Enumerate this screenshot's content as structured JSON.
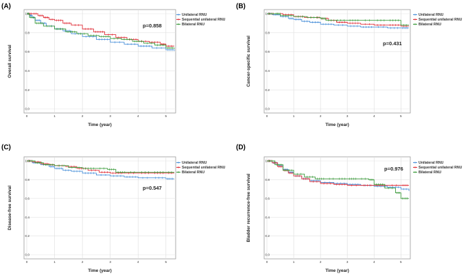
{
  "figure": {
    "legend_entries": [
      {
        "name": "Unilateral RNU",
        "color": "#4a90d9"
      },
      {
        "name": "Sequential unilateral RNU",
        "color": "#e0303a"
      },
      {
        "name": "Bilateral RNU",
        "color": "#3a9a3a"
      }
    ]
  },
  "chart_data": [
    {
      "panel": "(A)",
      "type": "line",
      "ylabel": "Overall survival",
      "xlabel": "Time (year)",
      "pvalue": "p=0.858",
      "legend_position": "top-right",
      "pvalue_position": "top",
      "xlim": [
        0,
        5.3
      ],
      "ylim": [
        0,
        1.0
      ],
      "xticks": [
        "0",
        "1",
        "2",
        "3",
        "4",
        "5"
      ],
      "yticks": [
        "0.0",
        "0.2",
        "0.4",
        "0.6",
        "0.8",
        "1.0"
      ],
      "series": [
        {
          "name": "Unilateral RNU",
          "color": "#4a90d9",
          "x": [
            0,
            0.1,
            0.2,
            0.3,
            0.5,
            0.7,
            1.0,
            1.3,
            1.6,
            2.0,
            2.5,
            3.0,
            3.5,
            4.0,
            4.5,
            5.0,
            5.3
          ],
          "y": [
            1.0,
            0.98,
            0.96,
            0.93,
            0.9,
            0.87,
            0.84,
            0.82,
            0.79,
            0.76,
            0.73,
            0.7,
            0.68,
            0.66,
            0.64,
            0.62,
            0.61
          ]
        },
        {
          "name": "Sequential unilateral RNU",
          "color": "#e0303a",
          "x": [
            0,
            0.2,
            0.4,
            0.6,
            0.8,
            1.0,
            1.3,
            1.6,
            2.0,
            2.4,
            2.8,
            3.2,
            3.6,
            4.0,
            4.4,
            4.8,
            5.0,
            5.3
          ],
          "y": [
            1.0,
            1.0,
            0.98,
            0.96,
            0.94,
            0.93,
            0.9,
            0.88,
            0.84,
            0.81,
            0.78,
            0.75,
            0.73,
            0.71,
            0.7,
            0.68,
            0.66,
            0.66
          ]
        },
        {
          "name": "Bilateral RNU",
          "color": "#3a9a3a",
          "x": [
            0,
            0.1,
            0.3,
            0.6,
            1.0,
            1.4,
            1.8,
            2.2,
            2.6,
            3.0,
            3.4,
            3.8,
            4.2,
            4.6,
            5.0,
            5.3
          ],
          "y": [
            1.0,
            0.96,
            0.9,
            0.87,
            0.84,
            0.81,
            0.79,
            0.77,
            0.76,
            0.74,
            0.73,
            0.71,
            0.69,
            0.67,
            0.64,
            0.63
          ]
        }
      ]
    },
    {
      "panel": "(B)",
      "type": "line",
      "ylabel": "Cancer-specific survival",
      "xlabel": "Time (year)",
      "pvalue": "p=0.431",
      "legend_position": "top-right",
      "pvalue_position": "upper-middle",
      "xlim": [
        0,
        5.3
      ],
      "ylim": [
        0,
        1.0
      ],
      "xticks": [
        "0",
        "1",
        "2",
        "3",
        "4",
        "5"
      ],
      "yticks": [
        "0.0",
        "0.2",
        "0.4",
        "0.6",
        "0.8",
        "1.0"
      ],
      "series": [
        {
          "name": "Unilateral RNU",
          "color": "#4a90d9",
          "x": [
            0,
            0.2,
            0.5,
            0.8,
            1.0,
            1.3,
            1.6,
            2.0,
            2.5,
            3.0,
            3.5,
            4.0,
            4.5,
            5.0,
            5.3
          ],
          "y": [
            1.0,
            0.99,
            0.97,
            0.95,
            0.94,
            0.92,
            0.91,
            0.89,
            0.88,
            0.87,
            0.86,
            0.86,
            0.85,
            0.85,
            0.85
          ]
        },
        {
          "name": "Sequential unilateral RNU",
          "color": "#e0303a",
          "x": [
            0,
            0.3,
            0.6,
            1.0,
            1.4,
            1.8,
            2.0,
            2.3,
            2.6,
            3.0,
            3.5,
            4.0,
            4.5,
            5.0,
            5.3
          ],
          "y": [
            1.0,
            1.0,
            0.99,
            0.97,
            0.96,
            0.96,
            0.95,
            0.93,
            0.91,
            0.9,
            0.89,
            0.88,
            0.88,
            0.87,
            0.87
          ]
        },
        {
          "name": "Bilateral RNU",
          "color": "#3a9a3a",
          "x": [
            0,
            0.3,
            0.5,
            1.0,
            1.5,
            2.0,
            2.2,
            2.5,
            3.0,
            3.5,
            4.0,
            4.5,
            5.0,
            5.3
          ],
          "y": [
            1.0,
            1.0,
            0.98,
            0.97,
            0.96,
            0.95,
            0.93,
            0.93,
            0.93,
            0.93,
            0.93,
            0.93,
            0.88,
            0.88
          ]
        }
      ]
    },
    {
      "panel": "(C)",
      "type": "line",
      "ylabel": "Disease-free survival",
      "xlabel": "Time (year)",
      "pvalue": "p=0.547",
      "legend_position": "top-right",
      "pvalue_position": "upper-middle",
      "xlim": [
        0,
        5.3
      ],
      "ylim": [
        0,
        1.0
      ],
      "xticks": [
        "0",
        "1",
        "2",
        "3",
        "4",
        "5"
      ],
      "yticks": [
        "0.0",
        "0.2",
        "0.4",
        "0.6",
        "0.8",
        "1.0"
      ],
      "series": [
        {
          "name": "Unilateral RNU",
          "color": "#4a90d9",
          "x": [
            0,
            0.2,
            0.5,
            0.8,
            1.0,
            1.3,
            1.6,
            2.0,
            2.5,
            3.0,
            3.5,
            4.0,
            4.5,
            5.0,
            5.3
          ],
          "y": [
            1.0,
            0.98,
            0.96,
            0.94,
            0.92,
            0.9,
            0.89,
            0.87,
            0.85,
            0.84,
            0.83,
            0.82,
            0.82,
            0.81,
            0.81
          ]
        },
        {
          "name": "Sequential unilateral RNU",
          "color": "#e0303a",
          "x": [
            0,
            0.2,
            0.5,
            0.8,
            1.0,
            1.4,
            1.8,
            2.2,
            2.6,
            3.0,
            3.5,
            4.0,
            4.5,
            5.0,
            5.3
          ],
          "y": [
            1.0,
            0.99,
            0.97,
            0.96,
            0.95,
            0.94,
            0.92,
            0.9,
            0.88,
            0.87,
            0.87,
            0.87,
            0.87,
            0.87,
            0.87
          ]
        },
        {
          "name": "Bilateral RNU",
          "color": "#3a9a3a",
          "x": [
            0,
            0.3,
            0.6,
            1.0,
            1.5,
            2.0,
            2.5,
            2.9,
            3.2,
            3.6,
            4.0,
            4.5,
            5.0,
            5.3
          ],
          "y": [
            1.0,
            0.98,
            0.96,
            0.95,
            0.93,
            0.92,
            0.92,
            0.91,
            0.88,
            0.88,
            0.88,
            0.88,
            0.88,
            0.88
          ]
        }
      ]
    },
    {
      "panel": "(D)",
      "type": "line",
      "ylabel": "Bladder recurrence-free survival",
      "xlabel": "Time (year)",
      "pvalue": "p=0.976",
      "legend_position": "top-right",
      "pvalue_position": "top-middle",
      "xlim": [
        0,
        5.3
      ],
      "ylim": [
        0,
        1.0
      ],
      "xticks": [
        "0",
        "1",
        "2",
        "3",
        "4",
        "5"
      ],
      "yticks": [
        "0.0",
        "0.2",
        "0.4",
        "0.6",
        "0.8",
        "1.0"
      ],
      "series": [
        {
          "name": "Unilateral RNU",
          "color": "#4a90d9",
          "x": [
            0,
            0.2,
            0.4,
            0.6,
            0.8,
            1.0,
            1.3,
            1.6,
            2.0,
            2.5,
            3.0,
            3.5,
            4.0,
            4.5,
            5.0,
            5.3
          ],
          "y": [
            1.0,
            0.98,
            0.95,
            0.91,
            0.88,
            0.84,
            0.81,
            0.79,
            0.77,
            0.76,
            0.75,
            0.74,
            0.73,
            0.72,
            0.7,
            0.68
          ]
        },
        {
          "name": "Sequential unilateral RNU",
          "color": "#e0303a",
          "x": [
            0,
            0.2,
            0.4,
            0.6,
            0.8,
            1.0,
            1.3,
            1.6,
            2.0,
            2.5,
            3.0,
            3.5,
            4.0,
            4.5,
            5.0,
            5.3
          ],
          "y": [
            1.0,
            0.98,
            0.94,
            0.9,
            0.87,
            0.84,
            0.81,
            0.78,
            0.76,
            0.75,
            0.74,
            0.74,
            0.74,
            0.74,
            0.74,
            0.74
          ]
        },
        {
          "name": "Bilateral RNU",
          "color": "#3a9a3a",
          "x": [
            0,
            0.3,
            0.6,
            1.0,
            1.4,
            1.8,
            2.2,
            2.6,
            3.0,
            3.4,
            3.8,
            4.0,
            4.4,
            4.8,
            5.0,
            5.3
          ],
          "y": [
            1.0,
            0.96,
            0.9,
            0.86,
            0.83,
            0.81,
            0.81,
            0.81,
            0.81,
            0.81,
            0.8,
            0.75,
            0.71,
            0.66,
            0.6,
            0.6
          ]
        }
      ]
    }
  ]
}
